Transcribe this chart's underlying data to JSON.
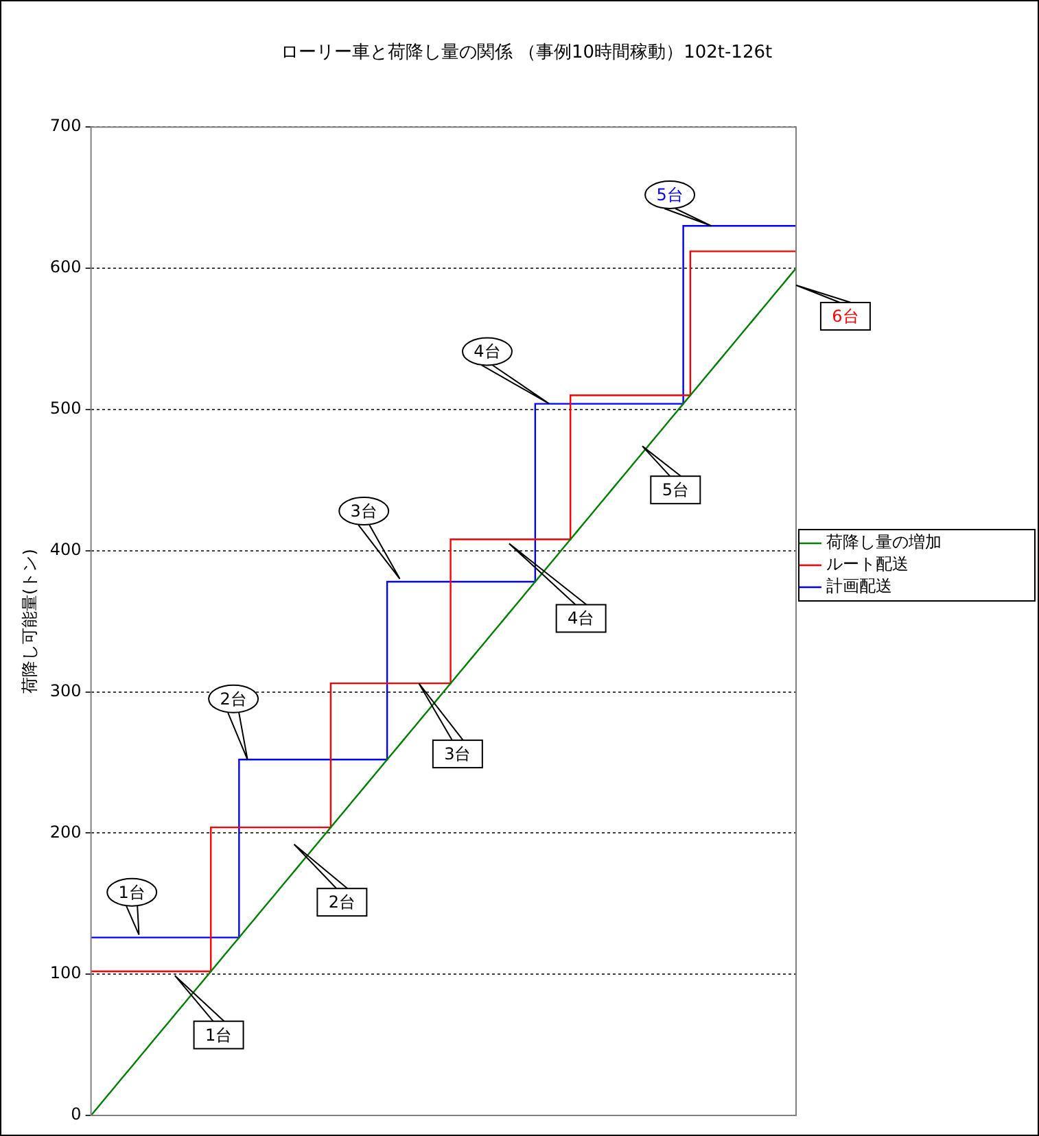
{
  "chart_data": {
    "type": "line",
    "title": "ローリー車と荷降し量の関係 （事例10時間稼動）102t-126t",
    "ylabel": "荷降し可能量(トン)",
    "categories": [
      null,
      null,
      null,
      null,
      null,
      null,
      null,
      null,
      null,
      null,
      null,
      null,
      null,
      null,
      null,
      null,
      null,
      null,
      null,
      null,
      null,
      null,
      null,
      null,
      null,
      null,
      null,
      null,
      null,
      null,
      null,
      null,
      null,
      null,
      null,
      null,
      null,
      null,
      null,
      null,
      null,
      null,
      null,
      null,
      null,
      null,
      null,
      null,
      null,
      null,
      null,
      null,
      null,
      null,
      null,
      null,
      null,
      null,
      null,
      null,
      null,
      null,
      null,
      null,
      null,
      null,
      null,
      null,
      null,
      null,
      null,
      null,
      null,
      null,
      null,
      null,
      null,
      null,
      null,
      null,
      null,
      null,
      null,
      null,
      null,
      null,
      null,
      null,
      null,
      null,
      null,
      null,
      null,
      null,
      null,
      null,
      null,
      null,
      null,
      null,
      null
    ],
    "series": [
      {
        "name": "荷降し量の増加",
        "color": "#008000",
        "values": [
          0,
          6,
          12,
          18,
          24,
          30,
          36,
          42,
          48,
          54,
          60,
          66,
          72,
          78,
          84,
          90,
          96,
          102,
          108,
          114,
          120,
          126,
          132,
          138,
          144,
          150,
          156,
          162,
          168,
          174,
          180,
          186,
          192,
          198,
          204,
          210,
          216,
          222,
          228,
          234,
          240,
          246,
          252,
          258,
          264,
          270,
          276,
          282,
          288,
          294,
          300,
          306,
          312,
          318,
          324,
          330,
          336,
          342,
          348,
          354,
          360,
          366,
          372,
          378,
          384,
          390,
          396,
          402,
          408,
          414,
          420,
          426,
          432,
          438,
          444,
          450,
          456,
          462,
          468,
          474,
          480,
          486,
          492,
          498,
          504,
          510,
          516,
          522,
          528,
          534,
          540,
          546,
          552,
          558,
          564,
          570,
          576,
          582,
          588,
          594,
          600
        ]
      },
      {
        "name": "ルート配送",
        "type": "step",
        "color": "#ff0000",
        "values": [
          102,
          102,
          102,
          102,
          102,
          102,
          102,
          102,
          102,
          102,
          102,
          102,
          102,
          102,
          102,
          102,
          102,
          204,
          204,
          204,
          204,
          204,
          204,
          204,
          204,
          204,
          204,
          204,
          204,
          204,
          204,
          204,
          204,
          204,
          306,
          306,
          306,
          306,
          306,
          306,
          306,
          306,
          306,
          306,
          306,
          306,
          306,
          306,
          306,
          306,
          306,
          408,
          408,
          408,
          408,
          408,
          408,
          408,
          408,
          408,
          408,
          408,
          408,
          408,
          408,
          408,
          408,
          408,
          510,
          510,
          510,
          510,
          510,
          510,
          510,
          510,
          510,
          510,
          510,
          510,
          510,
          510,
          510,
          510,
          510,
          612,
          612,
          612,
          612,
          612,
          612,
          612,
          612,
          612,
          612,
          612,
          612,
          612,
          612,
          612,
          612
        ]
      },
      {
        "name": "計画配送",
        "type": "step",
        "color": "#0000ff",
        "values": [
          126,
          126,
          126,
          126,
          126,
          126,
          126,
          126,
          126,
          126,
          126,
          126,
          126,
          126,
          126,
          126,
          126,
          126,
          126,
          126,
          126,
          252,
          252,
          252,
          252,
          252,
          252,
          252,
          252,
          252,
          252,
          252,
          252,
          252,
          252,
          252,
          252,
          252,
          252,
          252,
          252,
          252,
          378,
          378,
          378,
          378,
          378,
          378,
          378,
          378,
          378,
          378,
          378,
          378,
          378,
          378,
          378,
          378,
          378,
          378,
          378,
          378,
          378,
          504,
          504,
          504,
          504,
          504,
          504,
          504,
          504,
          504,
          504,
          504,
          504,
          504,
          504,
          504,
          504,
          504,
          504,
          504,
          504,
          504,
          630,
          630,
          630,
          630,
          630,
          630,
          630,
          630,
          630,
          630,
          630,
          630,
          630,
          630,
          630,
          630,
          630
        ]
      }
    ],
    "ylim": [
      0,
      700
    ],
    "yticks": [
      0,
      100,
      200,
      300,
      400,
      500,
      600,
      700
    ],
    "grid": "y",
    "legend": "right",
    "tick_labels": "y",
    "annotations": [
      "1台",
      "2台",
      "3台",
      "4台",
      "5台",
      "1台",
      "2台",
      "3台",
      "4台",
      "5台",
      "6台"
    ]
  }
}
